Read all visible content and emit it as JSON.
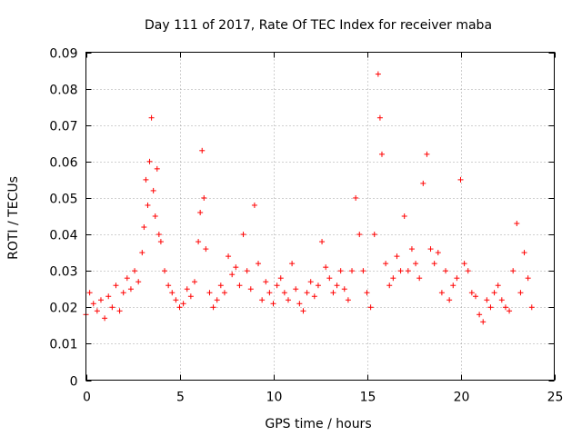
{
  "chart_data": {
    "type": "scatter",
    "title": "Day 111 of 2017, Rate Of TEC Index for receiver maba",
    "xlabel": "GPS time / hours",
    "ylabel": "ROTI / TECUs",
    "xlim": [
      0,
      25
    ],
    "ylim": [
      0,
      0.09
    ],
    "xticks": [
      0,
      5,
      10,
      15,
      20,
      25
    ],
    "xtick_labels": [
      "0",
      "5",
      "10",
      "15",
      "20",
      "25"
    ],
    "yticks": [
      0,
      0.01,
      0.02,
      0.03,
      0.04,
      0.05,
      0.06,
      0.07,
      0.08,
      0.09
    ],
    "ytick_labels": [
      "0",
      "0.01",
      "0.02",
      "0.03",
      "0.04",
      "0.05",
      "0.06",
      "0.07",
      "0.08",
      "0.09"
    ],
    "grid": true,
    "marker": "plus",
    "color": "#ff0000",
    "series": [
      {
        "name": "ROTI",
        "x": [
          0.0,
          0.2,
          0.4,
          0.6,
          0.8,
          1.0,
          1.2,
          1.4,
          1.6,
          1.8,
          2.0,
          2.2,
          2.4,
          2.6,
          2.8,
          3.0,
          3.1,
          3.2,
          3.3,
          3.4,
          3.5,
          3.6,
          3.7,
          3.8,
          3.9,
          4.0,
          4.2,
          4.4,
          4.6,
          4.8,
          5.0,
          5.2,
          5.4,
          5.6,
          5.8,
          6.0,
          6.1,
          6.2,
          6.3,
          6.4,
          6.6,
          6.8,
          7.0,
          7.2,
          7.4,
          7.6,
          7.8,
          8.0,
          8.2,
          8.4,
          8.6,
          8.8,
          9.0,
          9.2,
          9.4,
          9.6,
          9.8,
          10.0,
          10.2,
          10.4,
          10.6,
          10.8,
          11.0,
          11.2,
          11.4,
          11.6,
          11.8,
          12.0,
          12.2,
          12.4,
          12.6,
          12.8,
          13.0,
          13.2,
          13.4,
          13.6,
          13.8,
          14.0,
          14.2,
          14.4,
          14.6,
          14.8,
          15.0,
          15.2,
          15.4,
          15.6,
          15.7,
          15.8,
          16.0,
          16.2,
          16.4,
          16.6,
          16.8,
          17.0,
          17.2,
          17.4,
          17.6,
          17.8,
          18.0,
          18.2,
          18.4,
          18.6,
          18.8,
          19.0,
          19.2,
          19.4,
          19.6,
          19.8,
          20.0,
          20.2,
          20.4,
          20.6,
          20.8,
          21.0,
          21.2,
          21.4,
          21.6,
          21.8,
          22.0,
          22.2,
          22.4,
          22.6,
          22.8,
          23.0,
          23.2,
          23.4,
          23.6,
          23.8
        ],
        "y": [
          0.018,
          0.024,
          0.021,
          0.019,
          0.022,
          0.017,
          0.023,
          0.02,
          0.026,
          0.019,
          0.024,
          0.028,
          0.025,
          0.03,
          0.027,
          0.035,
          0.042,
          0.055,
          0.048,
          0.06,
          0.072,
          0.052,
          0.045,
          0.058,
          0.04,
          0.038,
          0.03,
          0.026,
          0.024,
          0.022,
          0.02,
          0.021,
          0.025,
          0.023,
          0.027,
          0.038,
          0.046,
          0.063,
          0.05,
          0.036,
          0.024,
          0.02,
          0.022,
          0.026,
          0.024,
          0.034,
          0.029,
          0.031,
          0.026,
          0.04,
          0.03,
          0.025,
          0.048,
          0.032,
          0.022,
          0.027,
          0.024,
          0.021,
          0.026,
          0.028,
          0.024,
          0.022,
          0.032,
          0.025,
          0.021,
          0.019,
          0.024,
          0.027,
          0.023,
          0.026,
          0.038,
          0.031,
          0.028,
          0.024,
          0.026,
          0.03,
          0.025,
          0.022,
          0.03,
          0.05,
          0.04,
          0.03,
          0.024,
          0.02,
          0.04,
          0.084,
          0.072,
          0.062,
          0.032,
          0.026,
          0.028,
          0.034,
          0.03,
          0.045,
          0.03,
          0.036,
          0.032,
          0.028,
          0.054,
          0.062,
          0.036,
          0.032,
          0.035,
          0.024,
          0.03,
          0.022,
          0.026,
          0.028,
          0.055,
          0.032,
          0.03,
          0.024,
          0.023,
          0.018,
          0.016,
          0.022,
          0.02,
          0.024,
          0.026,
          0.022,
          0.02,
          0.019,
          0.03,
          0.043,
          0.024,
          0.035,
          0.028,
          0.02
        ]
      }
    ]
  }
}
